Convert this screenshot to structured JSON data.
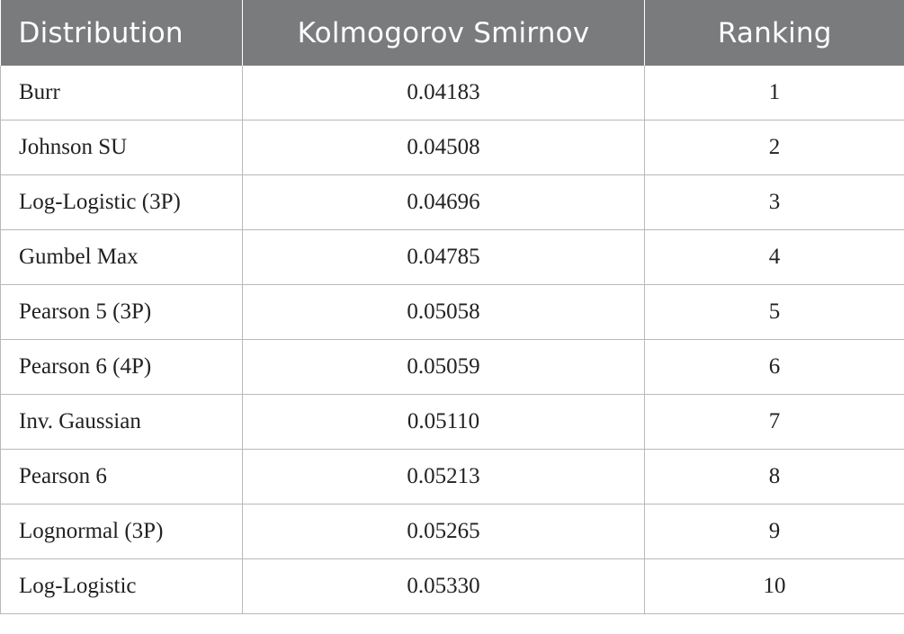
{
  "table": {
    "headers": [
      "Distribution",
      "Kolmogorov Smirnov",
      "Ranking"
    ],
    "rows": [
      {
        "distribution": "Burr",
        "ks": "0.04183",
        "ranking": "1"
      },
      {
        "distribution": "Johnson SU",
        "ks": "0.04508",
        "ranking": "2"
      },
      {
        "distribution": "Log-Logistic (3P)",
        "ks": "0.04696",
        "ranking": "3"
      },
      {
        "distribution": "Gumbel Max",
        "ks": "0.04785",
        "ranking": "4"
      },
      {
        "distribution": "Pearson 5 (3P)",
        "ks": "0.05058",
        "ranking": "5"
      },
      {
        "distribution": "Pearson 6 (4P)",
        "ks": "0.05059",
        "ranking": "6"
      },
      {
        "distribution": "Inv. Gaussian",
        "ks": "0.05110",
        "ranking": "7"
      },
      {
        "distribution": "Pearson 6",
        "ks": "0.05213",
        "ranking": "8"
      },
      {
        "distribution": "Lognormal (3P)",
        "ks": "0.05265",
        "ranking": "9"
      },
      {
        "distribution": "Log-Logistic",
        "ks": "0.05330",
        "ranking": "10"
      }
    ]
  },
  "colors": {
    "header_background": "#7a7b7d",
    "header_text": "#ffffff",
    "grid_line": "#b9b9b9"
  }
}
